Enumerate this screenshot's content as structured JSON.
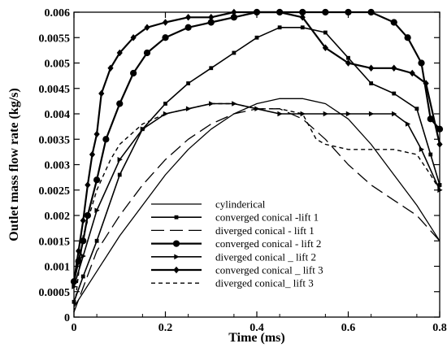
{
  "chart_data": {
    "type": "line",
    "title": "",
    "xlabel": "Time (ms)",
    "ylabel": "Outlet mass flow rate (kg/s)",
    "xlim": [
      0,
      0.8
    ],
    "ylim": [
      0,
      0.006
    ],
    "xticks": [
      0,
      0.2,
      0.4,
      0.6,
      0.8
    ],
    "xtick_labels": [
      "0",
      "0.2",
      "0.4",
      "0.6",
      "0.8"
    ],
    "yticks": [
      0,
      0.0005,
      0.001,
      0.0015,
      0.002,
      0.0025,
      0.003,
      0.0035,
      0.004,
      0.0045,
      0.005,
      0.0055,
      0.006
    ],
    "ytick_labels": [
      "0",
      "0.0005",
      "0.001",
      "0.0015",
      "0.002",
      "0.0025",
      "0.003",
      "0.0035",
      "0.004",
      "0.0045",
      "0.005",
      "0.0055",
      "0.006"
    ],
    "grid": false,
    "legend_position": "bottom-center",
    "series": [
      {
        "name": "cylinderical",
        "style": "solid-thin",
        "marker": "none",
        "x": [
          0,
          0.05,
          0.1,
          0.15,
          0.2,
          0.25,
          0.3,
          0.35,
          0.4,
          0.45,
          0.5,
          0.55,
          0.6,
          0.65,
          0.7,
          0.75,
          0.8
        ],
        "y": [
          0.0002,
          0.0009,
          0.0016,
          0.0022,
          0.0028,
          0.0033,
          0.0037,
          0.004,
          0.0042,
          0.0043,
          0.0043,
          0.0042,
          0.0039,
          0.0034,
          0.0028,
          0.0022,
          0.0015
        ]
      },
      {
        "name": "converged conical -lift 1",
        "style": "solid",
        "marker": "square",
        "x": [
          0,
          0.02,
          0.05,
          0.1,
          0.15,
          0.2,
          0.25,
          0.3,
          0.35,
          0.4,
          0.45,
          0.5,
          0.55,
          0.6,
          0.65,
          0.7,
          0.75,
          0.78,
          0.8
        ],
        "y": [
          0.0003,
          0.0008,
          0.0015,
          0.0028,
          0.0037,
          0.0042,
          0.0046,
          0.0049,
          0.0052,
          0.0055,
          0.0057,
          0.0057,
          0.0056,
          0.0051,
          0.0046,
          0.0044,
          0.0041,
          0.0032,
          0.0026
        ]
      },
      {
        "name": "diverged conical - lift 1",
        "style": "long-dash",
        "marker": "none",
        "x": [
          0,
          0.05,
          0.1,
          0.15,
          0.2,
          0.25,
          0.3,
          0.35,
          0.4,
          0.45,
          0.5,
          0.55,
          0.6,
          0.65,
          0.7,
          0.75,
          0.8
        ],
        "y": [
          0.0001,
          0.0013,
          0.002,
          0.0026,
          0.0031,
          0.0035,
          0.0038,
          0.004,
          0.0041,
          0.0041,
          0.0039,
          0.0035,
          0.003,
          0.0026,
          0.0023,
          0.002,
          0.0015
        ]
      },
      {
        "name": "converged conical - lift 2",
        "style": "solid-thick",
        "marker": "circle",
        "x": [
          0,
          0.01,
          0.02,
          0.03,
          0.05,
          0.07,
          0.1,
          0.13,
          0.16,
          0.2,
          0.25,
          0.3,
          0.35,
          0.4,
          0.45,
          0.5,
          0.55,
          0.6,
          0.65,
          0.7,
          0.73,
          0.76,
          0.78,
          0.8
        ],
        "y": [
          0.0007,
          0.0011,
          0.0015,
          0.002,
          0.0027,
          0.0035,
          0.0042,
          0.0048,
          0.0052,
          0.0055,
          0.0057,
          0.0058,
          0.0059,
          0.006,
          0.006,
          0.006,
          0.006,
          0.006,
          0.006,
          0.0058,
          0.0055,
          0.005,
          0.0039,
          0.0037
        ]
      },
      {
        "name": "diverged conical _ lift  2",
        "style": "solid",
        "marker": "triangle",
        "x": [
          0,
          0.02,
          0.05,
          0.1,
          0.15,
          0.2,
          0.25,
          0.3,
          0.35,
          0.4,
          0.45,
          0.5,
          0.55,
          0.6,
          0.65,
          0.7,
          0.73,
          0.76,
          0.8
        ],
        "y": [
          0.0006,
          0.0012,
          0.0021,
          0.0031,
          0.0037,
          0.004,
          0.0041,
          0.0042,
          0.0042,
          0.0041,
          0.004,
          0.004,
          0.004,
          0.004,
          0.004,
          0.004,
          0.0038,
          0.0033,
          0.0025
        ]
      },
      {
        "name": "converged conical _ lift  3",
        "style": "solid-thick",
        "marker": "diamond",
        "x": [
          0,
          0.01,
          0.02,
          0.03,
          0.04,
          0.05,
          0.06,
          0.08,
          0.1,
          0.13,
          0.16,
          0.2,
          0.25,
          0.3,
          0.35,
          0.4,
          0.45,
          0.5,
          0.55,
          0.6,
          0.65,
          0.7,
          0.74,
          0.77,
          0.8
        ],
        "y": [
          0.0007,
          0.0013,
          0.0019,
          0.0026,
          0.0032,
          0.0036,
          0.0044,
          0.0049,
          0.0052,
          0.0055,
          0.0057,
          0.0058,
          0.0059,
          0.0059,
          0.006,
          0.006,
          0.006,
          0.0059,
          0.0053,
          0.005,
          0.0049,
          0.0049,
          0.0048,
          0.0046,
          0.0034
        ]
      },
      {
        "name": "diverged conical_ lift  3",
        "style": "short-dash",
        "marker": "none",
        "x": [
          0,
          0.02,
          0.05,
          0.08,
          0.1,
          0.15,
          0.2,
          0.25,
          0.3,
          0.35,
          0.4,
          0.45,
          0.5,
          0.53,
          0.55,
          0.6,
          0.65,
          0.7,
          0.75,
          0.78,
          0.8
        ],
        "y": [
          0.0001,
          0.0016,
          0.0025,
          0.0031,
          0.0034,
          0.0038,
          0.004,
          0.0041,
          0.0042,
          0.0042,
          0.0041,
          0.0041,
          0.004,
          0.0035,
          0.0034,
          0.0033,
          0.0033,
          0.0033,
          0.0032,
          0.0028,
          0.0025
        ]
      }
    ]
  }
}
